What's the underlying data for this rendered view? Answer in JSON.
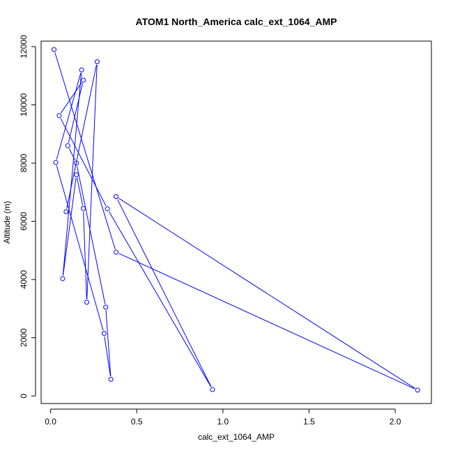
{
  "chart_data": {
    "type": "line",
    "title": "ATOM1 North_America calc_ext_1064_AMP",
    "xlabel": "calc_ext_1064_AMP",
    "ylabel": "Altitude (m)",
    "xlim": [
      -0.055,
      2.21
    ],
    "ylim": [
      -260,
      12190
    ],
    "xticks": [
      0,
      0.5,
      1,
      1.5,
      2
    ],
    "xtick_labels": [
      "0.0",
      "0.5",
      "1.0",
      "1.5",
      "2.0"
    ],
    "yticks": [
      0,
      2000,
      4000,
      6000,
      8000,
      10000,
      12000
    ],
    "ytick_labels": [
      "0",
      "2000",
      "4000",
      "6000",
      "8000",
      "10000",
      "12000"
    ],
    "grid": false,
    "series": [
      {
        "color": "#0000ff",
        "marker": "open-circle",
        "points": [
          {
            "x": 0.02,
            "y": 11900
          },
          {
            "x": 0.38,
            "y": 4940
          },
          {
            "x": 2.13,
            "y": 200
          },
          {
            "x": 0.38,
            "y": 6850
          },
          {
            "x": 0.94,
            "y": 220
          },
          {
            "x": 0.33,
            "y": 6430
          },
          {
            "x": 0.05,
            "y": 9630
          },
          {
            "x": 0.19,
            "y": 10850
          },
          {
            "x": 0.1,
            "y": 8600
          },
          {
            "x": 0.15,
            "y": 8000
          },
          {
            "x": 0.32,
            "y": 3050
          },
          {
            "x": 0.35,
            "y": 570
          },
          {
            "x": 0.31,
            "y": 2150
          },
          {
            "x": 0.03,
            "y": 8020
          },
          {
            "x": 0.18,
            "y": 11200
          },
          {
            "x": 0.07,
            "y": 4030
          },
          {
            "x": 0.15,
            "y": 7600
          },
          {
            "x": 0.19,
            "y": 6440
          },
          {
            "x": 0.21,
            "y": 3220
          },
          {
            "x": 0.27,
            "y": 11480
          },
          {
            "x": 0.09,
            "y": 6330
          }
        ]
      }
    ]
  }
}
